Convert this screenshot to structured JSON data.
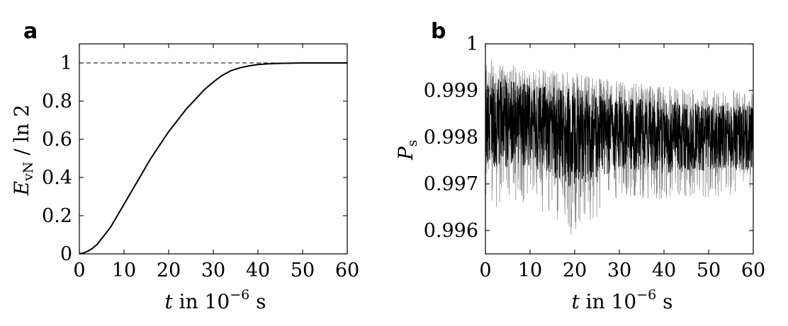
{
  "chart_data": [
    {
      "panel": "a",
      "type": "line",
      "xlabel_italic": "t",
      "xlabel_rest": " in 10",
      "xlabel_exp": "−6",
      "xlabel_unit": " s",
      "ylabel_main": "E",
      "ylabel_sub": "vN",
      "ylabel_rest": " / ln 2",
      "xlim": [
        0,
        60
      ],
      "ylim": [
        0,
        1.1
      ],
      "xticks": [
        0,
        10,
        20,
        30,
        40,
        50,
        60
      ],
      "yticks": [
        0,
        0.2,
        0.4,
        0.6,
        0.8,
        1
      ],
      "ytick_labels": [
        "0",
        "0.2",
        "0.4",
        "0.6",
        "0.8",
        "1"
      ],
      "reference_line": {
        "y": 1,
        "style": "dashed"
      },
      "series": [
        {
          "x": [
            0,
            1,
            2,
            3,
            4,
            5,
            6,
            7,
            8,
            9,
            10,
            12,
            14,
            16,
            18,
            20,
            22,
            24,
            26,
            28,
            30,
            32,
            34,
            36,
            38,
            40,
            42,
            44,
            46,
            48,
            50,
            55,
            60
          ],
          "y": [
            0,
            0.005,
            0.015,
            0.03,
            0.05,
            0.08,
            0.11,
            0.14,
            0.18,
            0.22,
            0.26,
            0.34,
            0.42,
            0.5,
            0.57,
            0.64,
            0.7,
            0.76,
            0.81,
            0.86,
            0.9,
            0.935,
            0.96,
            0.975,
            0.985,
            0.992,
            0.995,
            0.997,
            0.998,
            0.999,
            1,
            1,
            1
          ]
        }
      ]
    },
    {
      "panel": "b",
      "type": "line",
      "xlabel_italic": "t",
      "xlabel_rest": " in 10",
      "xlabel_exp": "−6",
      "xlabel_unit": " s",
      "ylabel_main": "P",
      "ylabel_sub": "s",
      "xlim": [
        0,
        60
      ],
      "ylim": [
        0.9955,
        1
      ],
      "xticks": [
        0,
        10,
        20,
        30,
        40,
        50,
        60
      ],
      "yticks": [
        0.996,
        0.997,
        0.998,
        0.999,
        1
      ],
      "ytick_labels": [
        "0.996",
        "0.997",
        "0.998",
        "0.999",
        "1"
      ],
      "series": [
        {
          "style": "dense noisy signal",
          "x": [
            0,
            10,
            20,
            30,
            40,
            50,
            60
          ],
          "mean": [
            0.9985,
            0.9983,
            0.9982,
            0.9981,
            0.998,
            0.998,
            0.998
          ],
          "upper": [
            0.9997,
            0.9995,
            0.9994,
            0.9992,
            0.9991,
            0.999,
            0.999
          ],
          "lower": [
            0.9964,
            0.9966,
            0.9958,
            0.9967,
            0.9966,
            0.9967,
            0.9967
          ]
        }
      ]
    }
  ]
}
